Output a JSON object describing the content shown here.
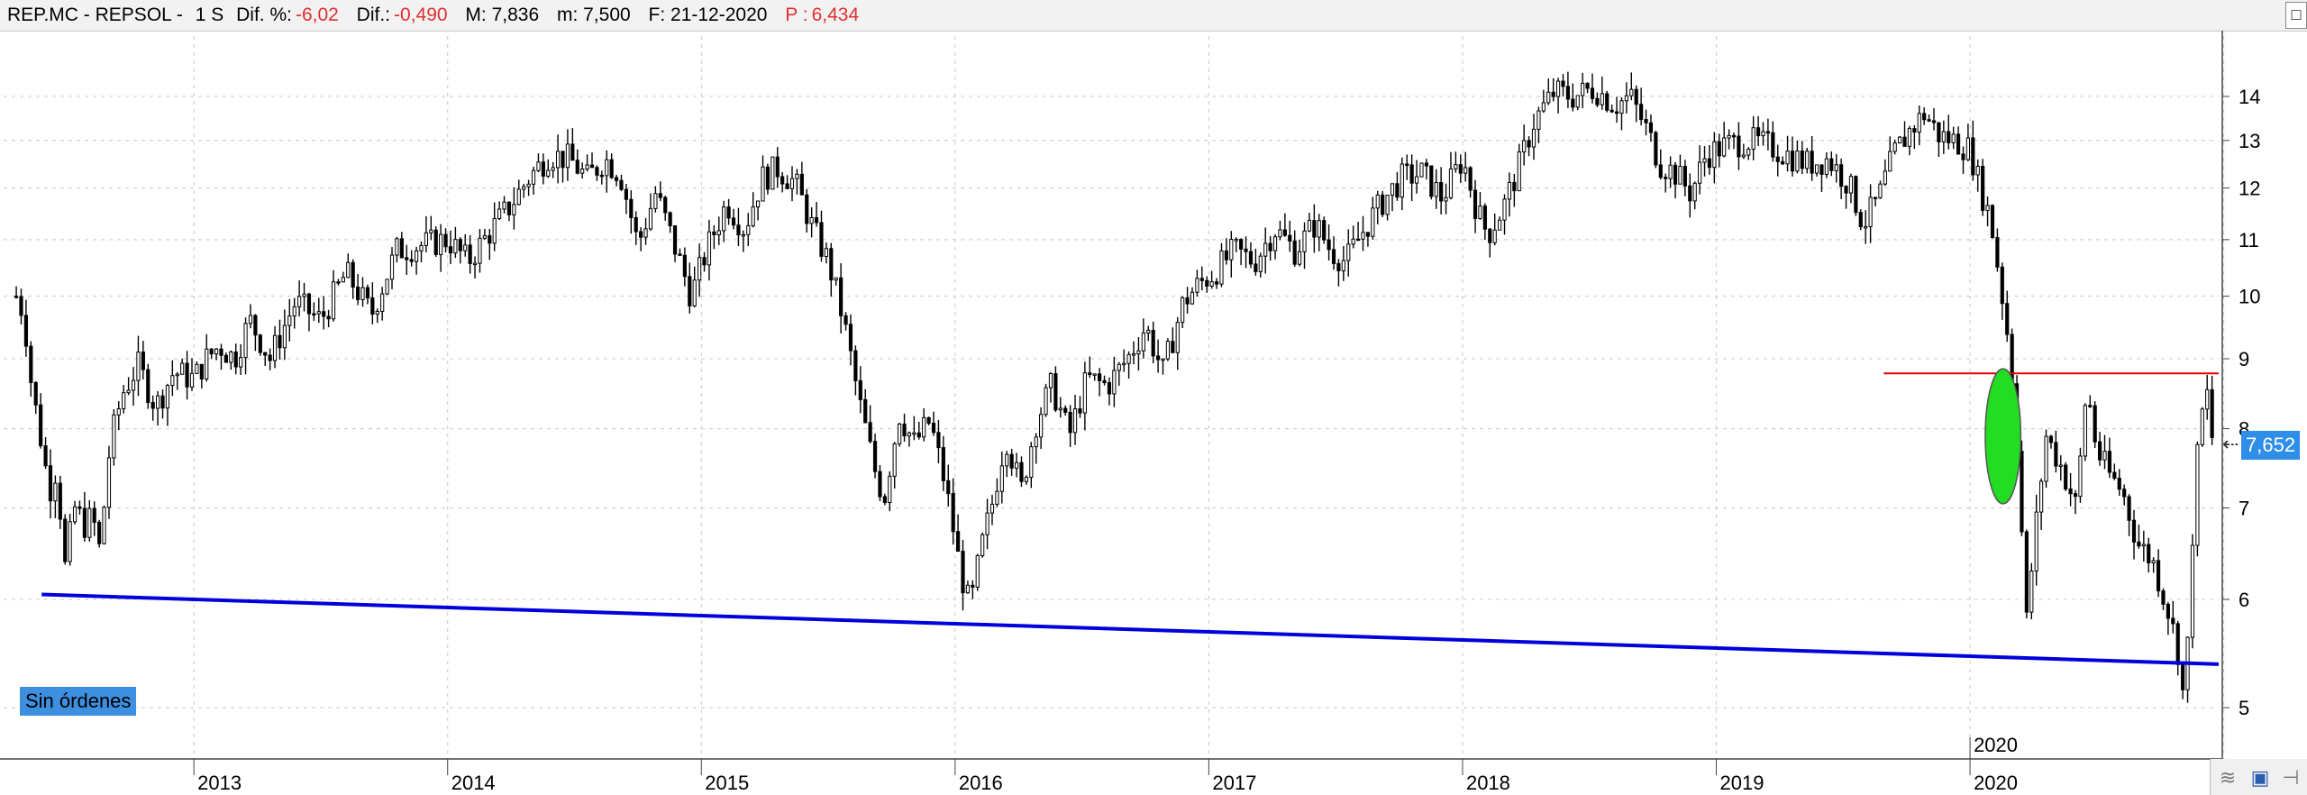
{
  "header": {
    "symbol": "REP.MC - REPSOL -",
    "timeframe": "1 S",
    "dif_pct_label": "Dif. %:",
    "dif_pct_value": "-6,02",
    "dif_label": "Dif.:",
    "dif_value": "-0,490",
    "max": "M: 7,836",
    "min": "m: 7,500",
    "date": "F: 21-12-2020",
    "price_label": "P :",
    "price_value": "6,434"
  },
  "orders_label": "Sin órdenes",
  "last_price_label": "7,652",
  "corner_icons": [
    "chart-style-icon",
    "save-icon",
    "pin-icon"
  ],
  "colors": {
    "support_line": "#0000dd",
    "resistance_line": "#e00000",
    "highlight": "#22dd22",
    "badge": "#2f8ee8"
  },
  "chart_data": {
    "type": "candlestick",
    "title": "",
    "y_axis": {
      "scale": "log",
      "ticks": [
        5,
        6,
        7,
        8,
        9,
        10,
        11,
        12,
        13,
        14
      ],
      "ylim": [
        4.6,
        15.5
      ]
    },
    "x_axis": {
      "ticks": [
        "2013",
        "2014",
        "2015",
        "2016",
        "2017",
        "2018",
        "2019",
        "2020",
        "2020"
      ],
      "marker_label": "2020",
      "xlim": [
        2012.25,
        2020.98
      ]
    },
    "grid": true,
    "series": [
      {
        "values": [
          [
            2012.3,
            10.0
          ],
          [
            2012.33,
            9.7
          ],
          [
            2012.36,
            8.6
          ],
          [
            2012.4,
            7.8
          ],
          [
            2012.43,
            7.2
          ],
          [
            2012.46,
            7.5
          ],
          [
            2012.49,
            6.3
          ],
          [
            2012.53,
            7.0
          ],
          [
            2012.57,
            6.8
          ],
          [
            2012.6,
            6.9
          ],
          [
            2012.63,
            6.5
          ],
          [
            2012.67,
            7.8
          ],
          [
            2012.72,
            8.5
          ],
          [
            2012.78,
            8.9
          ],
          [
            2012.85,
            8.3
          ],
          [
            2012.92,
            8.8
          ],
          [
            2013.0,
            8.7
          ],
          [
            2013.05,
            9.0
          ],
          [
            2013.1,
            9.2
          ],
          [
            2013.16,
            9.0
          ],
          [
            2013.22,
            9.6
          ],
          [
            2013.3,
            9.0
          ],
          [
            2013.4,
            9.9
          ],
          [
            2013.5,
            9.6
          ],
          [
            2013.6,
            10.4
          ],
          [
            2013.7,
            9.7
          ],
          [
            2013.8,
            10.8
          ],
          [
            2013.9,
            10.9
          ],
          [
            2014.0,
            11.0
          ],
          [
            2014.08,
            10.6
          ],
          [
            2014.16,
            11.1
          ],
          [
            2014.24,
            11.6
          ],
          [
            2014.32,
            12.2
          ],
          [
            2014.4,
            12.7
          ],
          [
            2014.48,
            12.6
          ],
          [
            2014.55,
            12.2
          ],
          [
            2014.62,
            12.6
          ],
          [
            2014.68,
            12.3
          ],
          [
            2014.75,
            10.9
          ],
          [
            2014.82,
            11.9
          ],
          [
            2014.9,
            10.8
          ],
          [
            2014.96,
            10.0
          ],
          [
            2015.02,
            10.8
          ],
          [
            2015.1,
            11.7
          ],
          [
            2015.17,
            11.2
          ],
          [
            2015.24,
            12.2
          ],
          [
            2015.3,
            12.4
          ],
          [
            2015.37,
            12.1
          ],
          [
            2015.44,
            11.2
          ],
          [
            2015.5,
            10.6
          ],
          [
            2015.56,
            9.6
          ],
          [
            2015.62,
            8.4
          ],
          [
            2015.68,
            7.5
          ],
          [
            2015.72,
            7.1
          ],
          [
            2015.78,
            8.2
          ],
          [
            2015.84,
            7.8
          ],
          [
            2015.9,
            8.1
          ],
          [
            2015.96,
            7.3
          ],
          [
            2016.02,
            6.3
          ],
          [
            2016.06,
            5.9
          ],
          [
            2016.1,
            6.5
          ],
          [
            2016.15,
            7.1
          ],
          [
            2016.2,
            7.9
          ],
          [
            2016.26,
            7.2
          ],
          [
            2016.32,
            8.1
          ],
          [
            2016.38,
            8.6
          ],
          [
            2016.45,
            7.9
          ],
          [
            2016.52,
            8.7
          ],
          [
            2016.6,
            8.6
          ],
          [
            2016.68,
            9.0
          ],
          [
            2016.75,
            9.5
          ],
          [
            2016.82,
            8.8
          ],
          [
            2016.9,
            9.9
          ],
          [
            2016.96,
            10.2
          ],
          [
            2017.02,
            10.4
          ],
          [
            2017.1,
            10.8
          ],
          [
            2017.18,
            10.6
          ],
          [
            2017.26,
            11.2
          ],
          [
            2017.34,
            10.8
          ],
          [
            2017.42,
            11.3
          ],
          [
            2017.48,
            10.8
          ],
          [
            2017.54,
            10.6
          ],
          [
            2017.6,
            11.1
          ],
          [
            2017.68,
            11.7
          ],
          [
            2017.76,
            12.2
          ],
          [
            2017.84,
            12.3
          ],
          [
            2017.92,
            11.8
          ],
          [
            2018.0,
            12.6
          ],
          [
            2018.06,
            11.5
          ],
          [
            2018.1,
            11.1
          ],
          [
            2018.16,
            11.6
          ],
          [
            2018.22,
            12.4
          ],
          [
            2018.28,
            13.4
          ],
          [
            2018.36,
            14.1
          ],
          [
            2018.44,
            14.0
          ],
          [
            2018.52,
            14.2
          ],
          [
            2018.6,
            13.8
          ],
          [
            2018.66,
            14.0
          ],
          [
            2018.72,
            13.3
          ],
          [
            2018.78,
            12.5
          ],
          [
            2018.84,
            12.3
          ],
          [
            2018.9,
            11.9
          ],
          [
            2018.96,
            12.7
          ],
          [
            2019.04,
            12.9
          ],
          [
            2019.12,
            13.0
          ],
          [
            2019.2,
            12.9
          ],
          [
            2019.28,
            12.7
          ],
          [
            2019.36,
            12.5
          ],
          [
            2019.44,
            12.6
          ],
          [
            2019.52,
            12.1
          ],
          [
            2019.58,
            11.3
          ],
          [
            2019.64,
            11.8
          ],
          [
            2019.7,
            12.7
          ],
          [
            2019.76,
            13.2
          ],
          [
            2019.82,
            13.6
          ],
          [
            2019.88,
            13.1
          ],
          [
            2019.94,
            13.0
          ],
          [
            2020.0,
            12.8
          ],
          [
            2020.04,
            12.0
          ],
          [
            2020.08,
            11.4
          ],
          [
            2020.12,
            10.2
          ],
          [
            2020.16,
            9.0
          ],
          [
            2020.19,
            7.6
          ],
          [
            2020.22,
            5.7
          ],
          [
            2020.26,
            6.8
          ],
          [
            2020.3,
            7.9
          ],
          [
            2020.36,
            7.5
          ],
          [
            2020.42,
            7.0
          ],
          [
            2020.46,
            8.6
          ],
          [
            2020.5,
            7.7
          ],
          [
            2020.55,
            7.4
          ],
          [
            2020.6,
            7.2
          ],
          [
            2020.66,
            6.6
          ],
          [
            2020.72,
            6.4
          ],
          [
            2020.78,
            5.9
          ],
          [
            2020.82,
            5.5
          ],
          [
            2020.84,
            5.1
          ],
          [
            2020.86,
            5.6
          ],
          [
            2020.88,
            6.9
          ],
          [
            2020.9,
            7.8
          ],
          [
            2020.93,
            8.6
          ],
          [
            2020.96,
            7.7
          ]
        ]
      }
    ],
    "annotations": {
      "support_line": {
        "from": [
          2012.4,
          6.05
        ],
        "to": [
          2020.98,
          5.38
        ]
      },
      "resistance_line": {
        "from": [
          2019.66,
          8.78
        ],
        "to": [
          2020.98,
          8.78
        ]
      },
      "highlight_ellipse": {
        "center": [
          2020.13,
          7.95
        ],
        "rx_years": 0.07,
        "range": [
          7.05,
          8.85
        ]
      }
    }
  }
}
